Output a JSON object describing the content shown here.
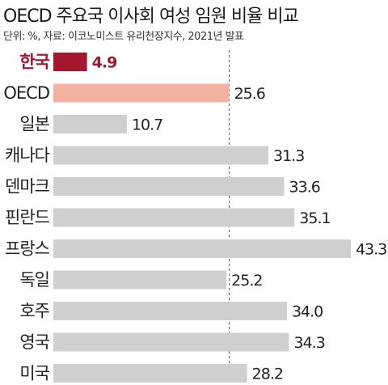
{
  "chart_data": {
    "type": "bar",
    "orientation": "horizontal",
    "title": "OECD 주요국 이사회 여성 임원 비율 비교",
    "subtitle": "단위: %, 자료: 이코노미스트 유리천장지수, 2021년 발표",
    "categories": [
      "한국",
      "OECD",
      "일본",
      "캐나다",
      "덴마크",
      "핀란드",
      "프랑스",
      "독일",
      "호주",
      "영국",
      "미국"
    ],
    "values": [
      4.9,
      25.6,
      10.7,
      31.3,
      33.6,
      35.1,
      43.3,
      25.2,
      34.0,
      34.3,
      28.2
    ],
    "value_labels": [
      "4.9",
      "25.6",
      "10.7",
      "31.3",
      "33.6",
      "35.1",
      "43.3",
      "25.2",
      "34.0",
      "34.3",
      "28.2"
    ],
    "reference_line": 25.6,
    "xlim": [
      0,
      43.3
    ],
    "colors": {
      "highlight": "#a3172f",
      "oecd": "#f4b3a0",
      "default": "#cfcfcf",
      "highlight_text": "#a3172f",
      "text": "#222222",
      "reference_line": "#555555"
    },
    "highlight_index": 0,
    "oecd_index": 1
  }
}
